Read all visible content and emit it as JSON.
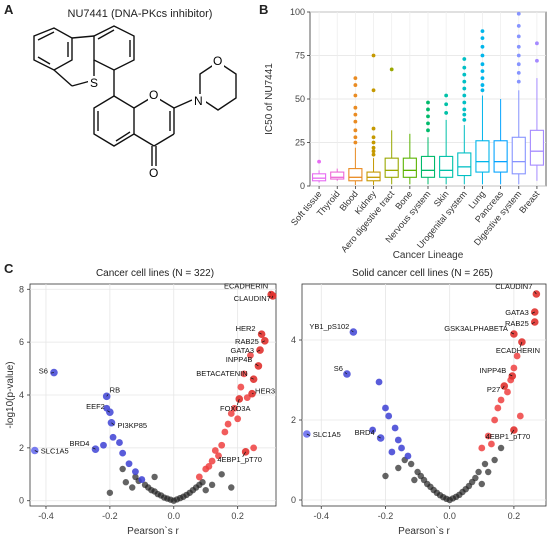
{
  "panels": {
    "a": {
      "letter": "A",
      "title": "NU7441 (DNA-PKcs inhibitor)",
      "atoms": {
        "S": "S",
        "O": "O",
        "N": "N",
        "ring_O": "O",
        "keto_O": "O"
      }
    },
    "b": {
      "letter": "B"
    },
    "c": {
      "letter": "C"
    }
  },
  "chart_data": [
    {
      "type": "box",
      "title": "",
      "xlabel": "Cancer Lineage",
      "ylabel": "IC50 of NU7441",
      "ylim": [
        0,
        100
      ],
      "yticks": [
        0,
        25,
        50,
        75,
        100
      ],
      "grid": true,
      "categories": [
        "Soft tissue",
        "Thyroid",
        "Blood",
        "Kidney",
        "Aero digestive tract",
        "Bone",
        "Nervous system",
        "Skin",
        "Urogenital system",
        "Lung",
        "Pancreas",
        "Digestive system",
        "Breast"
      ],
      "colors": [
        "#e76bf3",
        "#ed68d6",
        "#e98b22",
        "#c59900",
        "#9aa800",
        "#5bb300",
        "#00ba6b",
        "#00c1a7",
        "#00bfc4",
        "#00b6eb",
        "#06a4ff",
        "#8794ff",
        "#a58aff"
      ],
      "boxes": [
        {
          "min": 2,
          "q1": 3,
          "median": 4.5,
          "q3": 7,
          "max": 9,
          "outliers": [
            14
          ]
        },
        {
          "min": 3,
          "q1": 4,
          "median": 5,
          "q3": 8,
          "max": 10,
          "outliers": []
        },
        {
          "min": 0.5,
          "q1": 3,
          "median": 5,
          "q3": 10,
          "max": 22,
          "outliers": [
            25,
            28,
            32,
            37,
            41,
            45,
            52,
            58,
            62
          ]
        },
        {
          "min": 0.5,
          "q1": 3,
          "median": 5,
          "q3": 8,
          "max": 16,
          "outliers": [
            18,
            20,
            22,
            25,
            28,
            33,
            55,
            75
          ]
        },
        {
          "min": 1,
          "q1": 5,
          "median": 9,
          "q3": 16,
          "max": 32,
          "outliers": [
            67
          ]
        },
        {
          "min": 1,
          "q1": 5,
          "median": 9,
          "q3": 16,
          "max": 30,
          "outliers": []
        },
        {
          "min": 1,
          "q1": 5,
          "median": 9,
          "q3": 17,
          "max": 28,
          "outliers": [
            32,
            36,
            40,
            44,
            48
          ]
        },
        {
          "min": 1,
          "q1": 5,
          "median": 9,
          "q3": 17,
          "max": 38,
          "outliers": [
            42,
            47,
            52
          ]
        },
        {
          "min": 1,
          "q1": 6,
          "median": 11,
          "q3": 19,
          "max": 35,
          "outliers": [
            38,
            41,
            44,
            48,
            52,
            56,
            60,
            64,
            68,
            73
          ]
        },
        {
          "min": 1,
          "q1": 8,
          "median": 14,
          "q3": 26,
          "max": 52,
          "outliers": [
            55,
            58,
            62,
            66,
            70,
            75,
            80,
            85,
            89
          ]
        },
        {
          "min": 1,
          "q1": 8,
          "median": 14,
          "q3": 26,
          "max": 50,
          "outliers": []
        },
        {
          "min": 1,
          "q1": 7,
          "median": 14,
          "q3": 28,
          "max": 55,
          "outliers": [
            60,
            65,
            70,
            75,
            80,
            86,
            92,
            99
          ]
        },
        {
          "min": 3,
          "q1": 12,
          "median": 20,
          "q3": 32,
          "max": 62,
          "outliers": [
            72,
            82
          ]
        }
      ]
    },
    {
      "type": "scatter",
      "title": "Cancer cell lines (N = 322)",
      "xlabel": "Pearson`s r",
      "ylabel": "-log10(p-value)",
      "xlim": [
        -0.45,
        0.32
      ],
      "ylim": [
        -0.2,
        8.2
      ],
      "xticks": [
        -0.4,
        -0.2,
        0.0,
        0.2
      ],
      "xtick_labels": [
        "-0.4",
        "-0.2",
        "0.0",
        "0.2"
      ],
      "yticks": [
        0,
        2,
        4,
        6,
        8
      ],
      "ytick_labels": [
        "0",
        "2",
        "4",
        "6",
        "8"
      ],
      "grid": true,
      "labeled_points": [
        {
          "label": "ECADHERIN",
          "x": 0.305,
          "y": 7.8,
          "color": "#e0312e"
        },
        {
          "label": "CLAUDIN7",
          "x": 0.31,
          "y": 7.75,
          "color": "#e0312e"
        },
        {
          "label": "HER2",
          "x": 0.275,
          "y": 6.3,
          "color": "#e0312e"
        },
        {
          "label": "RAB25",
          "x": 0.285,
          "y": 6.05,
          "color": "#e0312e"
        },
        {
          "label": "GATA3",
          "x": 0.27,
          "y": 5.7,
          "color": "#e0312e"
        },
        {
          "label": "INPP4B",
          "x": 0.265,
          "y": 5.1,
          "color": "#e0312e"
        },
        {
          "label": "BETACATENIN",
          "x": 0.25,
          "y": 4.6,
          "color": "#e0312e"
        },
        {
          "label": "HER3",
          "x": 0.245,
          "y": 4.05,
          "color": "#e0312e"
        },
        {
          "label": "FOXO3A",
          "x": 0.205,
          "y": 3.85,
          "color": "#e0312e"
        },
        {
          "label": "4EBP1_pT70",
          "x": 0.225,
          "y": 1.85,
          "color": "#e0312e"
        },
        {
          "label": "S6",
          "x": -0.375,
          "y": 4.85,
          "color": "#4a4fd8"
        },
        {
          "label": "RB",
          "x": -0.21,
          "y": 3.95,
          "color": "#4a4fd8"
        },
        {
          "label": "EEF2",
          "x": -0.2,
          "y": 3.35,
          "color": "#4a4fd8"
        },
        {
          "label": "PI3KP85",
          "x": -0.195,
          "y": 2.95,
          "color": "#4a4fd8"
        },
        {
          "label": "BRD4",
          "x": -0.245,
          "y": 1.95,
          "color": "#4a4fd8"
        },
        {
          "label": "SLC1A5",
          "x": -0.435,
          "y": 1.9,
          "color": "#6a6ff0"
        }
      ],
      "red_points": [
        [
          0.08,
          0.9
        ],
        [
          0.1,
          1.2
        ],
        [
          0.12,
          1.5
        ],
        [
          0.13,
          1.9
        ],
        [
          0.15,
          2.1
        ],
        [
          0.16,
          2.6
        ],
        [
          0.17,
          2.9
        ],
        [
          0.18,
          3.3
        ],
        [
          0.19,
          3.5
        ],
        [
          0.2,
          3.1
        ],
        [
          0.21,
          4.3
        ],
        [
          0.22,
          4.8
        ],
        [
          0.23,
          3.9
        ],
        [
          0.24,
          5.5
        ],
        [
          0.14,
          1.7
        ],
        [
          0.11,
          1.3
        ],
        [
          0.25,
          2.0
        ]
      ],
      "blue_points": [
        [
          -0.19,
          2.4
        ],
        [
          -0.16,
          1.8
        ],
        [
          -0.14,
          1.4
        ],
        [
          -0.12,
          1.1
        ],
        [
          -0.1,
          0.8
        ],
        [
          -0.22,
          2.1
        ],
        [
          -0.17,
          2.2
        ],
        [
          -0.21,
          3.5
        ]
      ],
      "black_points": [
        [
          -0.09,
          0.6
        ],
        [
          -0.08,
          0.5
        ],
        [
          -0.07,
          0.4
        ],
        [
          -0.06,
          0.35
        ],
        [
          -0.05,
          0.25
        ],
        [
          -0.04,
          0.2
        ],
        [
          -0.03,
          0.12
        ],
        [
          -0.02,
          0.08
        ],
        [
          -0.01,
          0.04
        ],
        [
          0.0,
          0.0
        ],
        [
          0.01,
          0.05
        ],
        [
          0.02,
          0.1
        ],
        [
          0.03,
          0.15
        ],
        [
          0.04,
          0.22
        ],
        [
          0.05,
          0.3
        ],
        [
          0.06,
          0.4
        ],
        [
          0.07,
          0.5
        ],
        [
          0.08,
          0.6
        ],
        [
          0.09,
          0.7
        ],
        [
          -0.12,
          0.9
        ],
        [
          -0.11,
          0.75
        ],
        [
          -0.13,
          0.5
        ],
        [
          -0.15,
          0.7
        ],
        [
          0.12,
          0.6
        ],
        [
          0.1,
          0.4
        ],
        [
          -0.06,
          0.9
        ],
        [
          -0.16,
          1.2
        ],
        [
          0.15,
          1.0
        ],
        [
          -0.2,
          0.3
        ],
        [
          0.18,
          0.5
        ]
      ]
    },
    {
      "type": "scatter",
      "title": "Solid cancer cell lines (N = 265)",
      "xlabel": "Pearson`s r",
      "ylabel": "",
      "xlim": [
        -0.46,
        0.3
      ],
      "ylim": [
        -0.15,
        5.4
      ],
      "xticks": [
        -0.4,
        -0.2,
        0.0,
        0.2
      ],
      "xtick_labels": [
        "-0.4",
        "-0.2",
        "0.0",
        "0.2"
      ],
      "yticks": [
        0,
        2,
        4
      ],
      "ytick_labels": [
        "0",
        "2",
        "4"
      ],
      "grid": true,
      "labeled_points": [
        {
          "label": "CLAUDIN7",
          "x": 0.27,
          "y": 5.15,
          "color": "#e0312e"
        },
        {
          "label": "GATA3",
          "x": 0.265,
          "y": 4.7,
          "color": "#e0312e"
        },
        {
          "label": "RAB25",
          "x": 0.265,
          "y": 4.45,
          "color": "#e0312e"
        },
        {
          "label": "GSK3ALPHABETA",
          "x": 0.2,
          "y": 4.15,
          "color": "#e0312e"
        },
        {
          "label": "ECADHERIN",
          "x": 0.225,
          "y": 3.95,
          "color": "#e0312e"
        },
        {
          "label": "INPP4B",
          "x": 0.195,
          "y": 3.1,
          "color": "#e0312e"
        },
        {
          "label": "P27",
          "x": 0.17,
          "y": 2.85,
          "color": "#e0312e"
        },
        {
          "label": "4EBP1_pT70",
          "x": 0.2,
          "y": 1.75,
          "color": "#e0312e"
        },
        {
          "label": "YB1_pS102",
          "x": -0.3,
          "y": 4.2,
          "color": "#4a4fd8"
        },
        {
          "label": "S6",
          "x": -0.32,
          "y": 3.15,
          "color": "#4a4fd8"
        },
        {
          "label": "BRD4",
          "x": -0.215,
          "y": 1.55,
          "color": "#4a4fd8"
        },
        {
          "label": "SLC1A5",
          "x": -0.445,
          "y": 1.65,
          "color": "#6a6ff0"
        }
      ],
      "red_points": [
        [
          0.1,
          1.3
        ],
        [
          0.12,
          1.6
        ],
        [
          0.14,
          2.0
        ],
        [
          0.15,
          2.3
        ],
        [
          0.16,
          2.5
        ],
        [
          0.18,
          2.7
        ],
        [
          0.19,
          3.0
        ],
        [
          0.2,
          3.3
        ],
        [
          0.21,
          3.6
        ],
        [
          0.22,
          2.1
        ],
        [
          0.13,
          1.4
        ]
      ],
      "blue_points": [
        [
          -0.22,
          2.95
        ],
        [
          -0.2,
          2.3
        ],
        [
          -0.19,
          2.1
        ],
        [
          -0.17,
          1.8
        ],
        [
          -0.16,
          1.5
        ],
        [
          -0.15,
          1.3
        ],
        [
          -0.13,
          1.1
        ],
        [
          -0.24,
          1.75
        ],
        [
          -0.18,
          1.2
        ]
      ],
      "black_points": [
        [
          -0.12,
          0.9
        ],
        [
          -0.1,
          0.7
        ],
        [
          -0.09,
          0.6
        ],
        [
          -0.08,
          0.5
        ],
        [
          -0.07,
          0.4
        ],
        [
          -0.06,
          0.33
        ],
        [
          -0.05,
          0.25
        ],
        [
          -0.04,
          0.18
        ],
        [
          -0.03,
          0.12
        ],
        [
          -0.02,
          0.07
        ],
        [
          -0.01,
          0.03
        ],
        [
          0.0,
          0.0
        ],
        [
          0.01,
          0.04
        ],
        [
          0.02,
          0.08
        ],
        [
          0.03,
          0.13
        ],
        [
          0.04,
          0.2
        ],
        [
          0.05,
          0.27
        ],
        [
          0.06,
          0.35
        ],
        [
          0.07,
          0.45
        ],
        [
          0.08,
          0.55
        ],
        [
          0.09,
          0.7
        ],
        [
          0.11,
          0.9
        ],
        [
          -0.14,
          1.0
        ],
        [
          -0.11,
          0.5
        ],
        [
          0.1,
          0.4
        ],
        [
          0.12,
          0.7
        ],
        [
          -0.16,
          0.8
        ],
        [
          0.14,
          1.0
        ],
        [
          -0.2,
          0.6
        ],
        [
          0.16,
          1.3
        ]
      ]
    }
  ]
}
